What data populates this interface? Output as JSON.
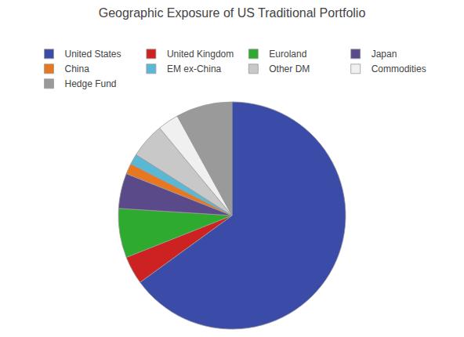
{
  "chart_data": {
    "type": "pie",
    "title": "Geographic Exposure of US Traditional Portfolio",
    "categories": [
      "United States",
      "United Kingdom",
      "Euroland",
      "Japan",
      "China",
      "EM ex-China",
      "Other DM",
      "Commodities",
      "Hedge Fund"
    ],
    "values": [
      65,
      4,
      7,
      5,
      1.5,
      1.5,
      5,
      3,
      8
    ],
    "colors": [
      "#3B4BA8",
      "#CC2222",
      "#2EAA2E",
      "#5B4A8A",
      "#E87722",
      "#5BB8D4",
      "#C8C8C8",
      "#F0F0F0",
      "#9A9A9A"
    ],
    "legend": "top"
  }
}
